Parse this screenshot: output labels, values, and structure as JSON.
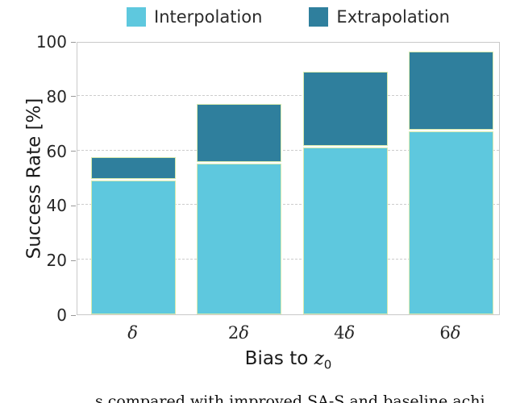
{
  "legend": {
    "items": [
      {
        "label": "Interpolation",
        "color": "#5ec8de"
      },
      {
        "label": "Extrapolation",
        "color": "#2f7f9d"
      }
    ]
  },
  "chart_data": {
    "type": "bar",
    "stacked": true,
    "title": "",
    "categories": [
      "δ",
      "2δ",
      "4δ",
      "6δ"
    ],
    "series": [
      {
        "name": "Interpolation",
        "color": "#5ec8de",
        "values": [
          49.0,
          55.3,
          61.2,
          67.1
        ]
      },
      {
        "name": "Extrapolation",
        "color": "#2f7f9d",
        "values": [
          8.0,
          21.2,
          27.0,
          28.5
        ]
      }
    ],
    "stacked_totals": [
      57.0,
      76.5,
      88.2,
      95.6
    ],
    "ylabel": "Success Rate [%]",
    "ylim": [
      0,
      100
    ],
    "yticks": [
      0,
      20,
      40,
      60,
      80,
      100
    ],
    "grid": "horizontal-dashed",
    "legend_position": "top",
    "bar_edge_color": "#d8eaae",
    "xlabel_parts": {
      "prefix": "Bias to ",
      "var": "z",
      "sub": "0"
    }
  },
  "caption": {
    "fragment": "s compared with improved SA-S and baseline achi"
  }
}
